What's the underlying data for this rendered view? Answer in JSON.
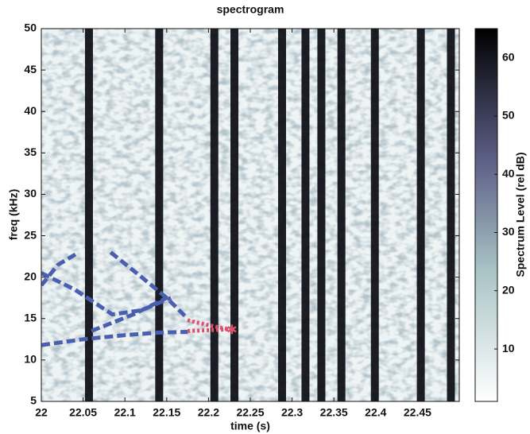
{
  "chart_data": {
    "type": "spectrogram",
    "title": "spectrogram",
    "x_label": "time (s)",
    "y_label": "freq (kHz)",
    "xlim": [
      22,
      22.5
    ],
    "ylim": [
      5,
      50
    ],
    "xticks": [
      22,
      22.05,
      22.1,
      22.15,
      22.2,
      22.25,
      22.3,
      22.35,
      22.4,
      22.45
    ],
    "yticks": [
      5,
      10,
      15,
      20,
      25,
      30,
      35,
      40,
      45,
      50
    ],
    "colorbar": {
      "label": "Spectrum Level (rel dB)",
      "lim": [
        1,
        65
      ],
      "ticks": [
        10,
        20,
        30,
        40,
        50,
        60
      ]
    },
    "clicks": {
      "color": "#0b0b12",
      "x": [
        22.057,
        22.141,
        22.207,
        22.231,
        22.288,
        22.316,
        22.335,
        22.359,
        22.399,
        22.454,
        22.49
      ]
    },
    "series": [
      {
        "color": "#4a5fb0",
        "style": "dashed",
        "x": [
          22,
          22.05,
          22.1,
          22.14,
          22.175
        ],
        "y": [
          11.8,
          12.5,
          13,
          13.3,
          13.4
        ]
      },
      {
        "color": "#4a5fb0",
        "style": "dashed",
        "x": [
          22,
          22.02,
          22.045
        ],
        "y": [
          19,
          21.5,
          23
        ]
      },
      {
        "color": "#4a5fb0",
        "style": "dashed",
        "x": [
          22,
          22.04,
          22.085,
          22.12,
          22.155
        ],
        "y": [
          20.5,
          18.5,
          15.5,
          16,
          17.5
        ]
      },
      {
        "color": "#4a5fb0",
        "style": "dashed",
        "x": [
          22.083,
          22.12,
          22.15,
          22.175
        ],
        "y": [
          23,
          20,
          17.5,
          15
        ]
      },
      {
        "color": "#4a5fb0",
        "style": "dashed",
        "x": [
          22.06,
          22.11,
          22.15
        ],
        "y": [
          13.5,
          15.5,
          17.5
        ]
      },
      {
        "color": "#e0506a",
        "style": "dotted",
        "x": [
          22.175,
          22.2,
          22.225
        ],
        "y": [
          14.8,
          14.2,
          13.7
        ]
      },
      {
        "color": "#e0506a",
        "style": "dotted",
        "x": [
          22.175,
          22.2,
          22.225
        ],
        "y": [
          13.5,
          13.6,
          13.7
        ]
      }
    ],
    "markers": {
      "color": "#e0506a",
      "x": [
        22.228
      ],
      "y": [
        13.7
      ]
    }
  }
}
